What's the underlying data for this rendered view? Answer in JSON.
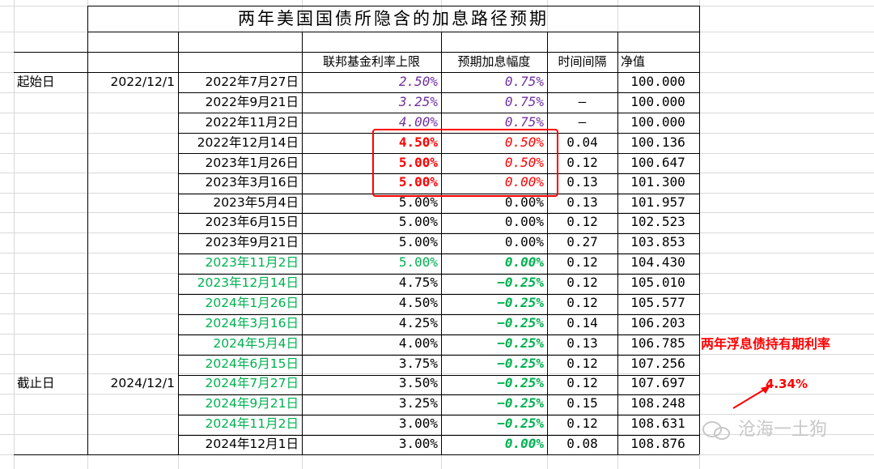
{
  "title": "两年美国国债所隐含的加息路径预期",
  "headers": {
    "rate": "联邦基金利率上限",
    "hike": "预期加息幅度",
    "interval": "时间间隔",
    "nav": "净值"
  },
  "labels": {
    "start": "起始日",
    "start_date": "2022/12/1",
    "end": "截止日",
    "end_date": "2024/12/1"
  },
  "rows": [
    {
      "date": "2022年7月27日",
      "rate": "2.50%",
      "hike": "0.75%",
      "interval": "",
      "nav": "100.000"
    },
    {
      "date": "2022年9月21日",
      "rate": "3.25%",
      "hike": "0.75%",
      "interval": "–",
      "nav": "100.000"
    },
    {
      "date": "2022年11月2日",
      "rate": "4.00%",
      "hike": "0.75%",
      "interval": "–",
      "nav": "100.000"
    },
    {
      "date": "2022年12月14日",
      "rate": "4.50%",
      "hike": "0.50%",
      "interval": "0.04",
      "nav": "100.136"
    },
    {
      "date": "2023年1月26日",
      "rate": "5.00%",
      "hike": "0.50%",
      "interval": "0.12",
      "nav": "100.647"
    },
    {
      "date": "2023年3月16日",
      "rate": "5.00%",
      "hike": "0.00%",
      "interval": "0.13",
      "nav": "101.300"
    },
    {
      "date": "2023年5月4日",
      "rate": "5.00%",
      "hike": "0.00%",
      "interval": "0.13",
      "nav": "101.957"
    },
    {
      "date": "2023年6月15日",
      "rate": "5.00%",
      "hike": "0.00%",
      "interval": "0.12",
      "nav": "102.523"
    },
    {
      "date": "2023年9月21日",
      "rate": "5.00%",
      "hike": "0.00%",
      "interval": "0.27",
      "nav": "103.853"
    },
    {
      "date": "2023年11月2日",
      "rate": "5.00%",
      "hike": "0.00%",
      "interval": "0.12",
      "nav": "104.430"
    },
    {
      "date": "2023年12月14日",
      "rate": "4.75%",
      "hike": "−0.25%",
      "interval": "0.12",
      "nav": "105.010"
    },
    {
      "date": "2024年1月26日",
      "rate": "4.50%",
      "hike": "−0.25%",
      "interval": "0.12",
      "nav": "105.577"
    },
    {
      "date": "2024年3月16日",
      "rate": "4.25%",
      "hike": "−0.25%",
      "interval": "0.14",
      "nav": "106.203"
    },
    {
      "date": "2024年5月4日",
      "rate": "4.00%",
      "hike": "−0.25%",
      "interval": "0.13",
      "nav": "106.785"
    },
    {
      "date": "2024年6月15日",
      "rate": "3.75%",
      "hike": "−0.25%",
      "interval": "0.12",
      "nav": "107.256"
    },
    {
      "date": "2024年7月27日",
      "rate": "3.50%",
      "hike": "−0.25%",
      "interval": "0.12",
      "nav": "107.697"
    },
    {
      "date": "2024年9月21日",
      "rate": "3.25%",
      "hike": "−0.25%",
      "interval": "0.15",
      "nav": "108.248"
    },
    {
      "date": "2024年11月2日",
      "rate": "3.00%",
      "hike": "−0.25%",
      "interval": "0.12",
      "nav": "108.631"
    },
    {
      "date": "2024年12月1日",
      "rate": "3.00%",
      "hike": "0.00%",
      "interval": "0.08",
      "nav": "108.876"
    }
  ],
  "side": {
    "label": "两年浮息债持有期利率",
    "value": "4.34%"
  },
  "watermark": "沧海一土狗",
  "colors": {
    "purple": "#7030a0",
    "red": "#ff0000",
    "green": "#00b050",
    "grid": "#d9d9d9"
  }
}
